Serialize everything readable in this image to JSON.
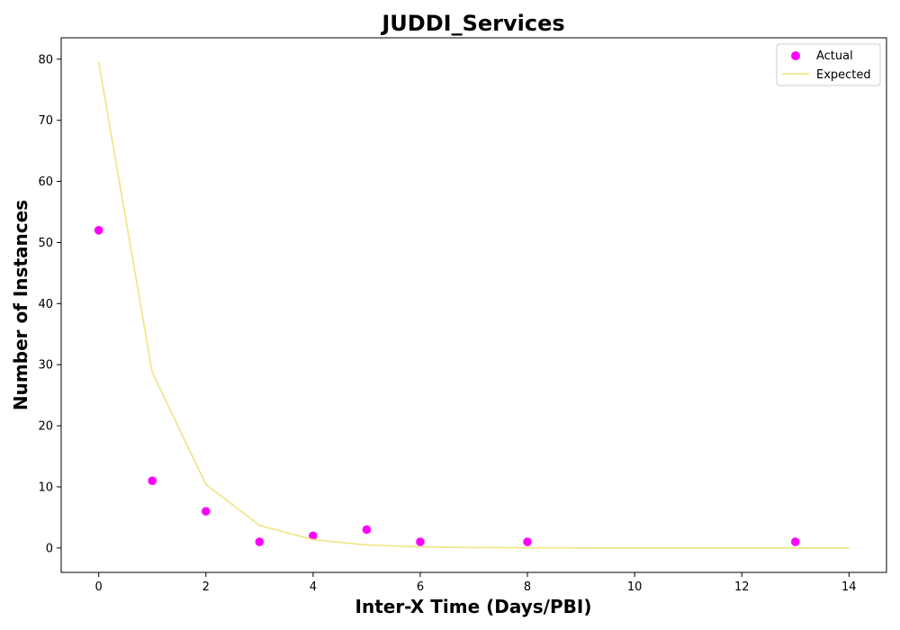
{
  "chart_data": {
    "type": "scatter",
    "title": "JUDDI_Services",
    "xlabel": "Inter-X Time (Days/PBI)",
    "ylabel": "Number of Instances",
    "xlim": [
      -0.7,
      14.7
    ],
    "ylim": [
      -4,
      83.5
    ],
    "xticks": [
      0,
      2,
      4,
      6,
      8,
      10,
      12,
      14
    ],
    "yticks": [
      0,
      10,
      20,
      30,
      40,
      50,
      60,
      70,
      80
    ],
    "grid": false,
    "legend_position": "top-right",
    "series": [
      {
        "name": "Actual",
        "kind": "scatter",
        "color": "#ff00ff",
        "x": [
          0,
          1,
          2,
          3,
          4,
          5,
          6,
          8,
          13
        ],
        "y": [
          52,
          11,
          6,
          1,
          2,
          3,
          1,
          1,
          1
        ]
      },
      {
        "name": "Expected",
        "kind": "line",
        "color": "#f0e68c",
        "x": [
          0,
          1,
          2,
          3,
          4,
          5,
          6,
          7,
          8,
          9,
          10,
          11,
          12,
          13,
          14
        ],
        "y": [
          79.5,
          28.7,
          10.4,
          3.7,
          1.35,
          0.5,
          0.18,
          0.06,
          0.02,
          0.01,
          0,
          0,
          0,
          0,
          0
        ]
      }
    ]
  }
}
